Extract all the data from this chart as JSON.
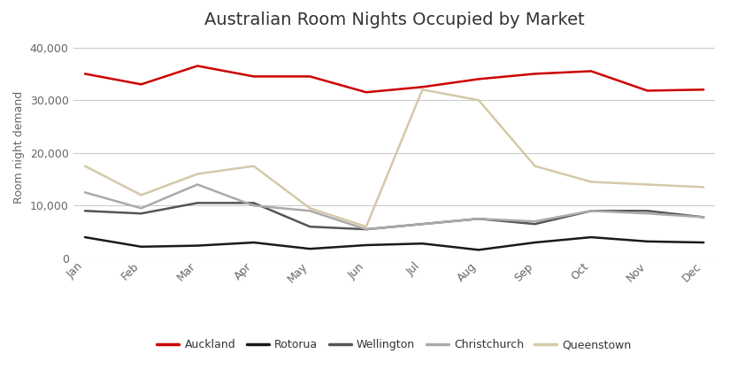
{
  "title": "Australian Room Nights Occupied by Market",
  "ylabel": "Room night demand",
  "months": [
    "Jan",
    "Feb",
    "Mar",
    "Apr",
    "May",
    "Jun",
    "Jul",
    "Aug",
    "Sep",
    "Oct",
    "Nov",
    "Dec"
  ],
  "series": {
    "Auckland": [
      35000,
      33000,
      36500,
      34500,
      34500,
      31500,
      32500,
      34000,
      35000,
      35500,
      31800,
      32000
    ],
    "Rotorua": [
      4000,
      2200,
      2400,
      3000,
      1800,
      2500,
      2800,
      1600,
      3000,
      4000,
      3200,
      3000
    ],
    "Wellington": [
      9000,
      8500,
      10500,
      10500,
      6000,
      5500,
      6500,
      7500,
      6500,
      9000,
      9000,
      7800
    ],
    "Christchurch": [
      12500,
      9500,
      14000,
      10000,
      9000,
      5500,
      6500,
      7500,
      7000,
      9000,
      8500,
      7800
    ],
    "Queenstown": [
      17500,
      12000,
      16000,
      17500,
      9500,
      6000,
      32000,
      30000,
      17500,
      14500,
      14000,
      13500
    ]
  },
  "colors": {
    "Auckland": "#cc0000",
    "Rotorua": "#1a1a1a",
    "Wellington": "#555555",
    "Christchurch": "#aaaaaa",
    "Queenstown": "#d4c9a8"
  },
  "ylim": [
    0,
    42000
  ],
  "yticks": [
    0,
    10000,
    20000,
    30000,
    40000
  ],
  "background_color": "#ffffff",
  "grid_color": "#cccccc",
  "title_fontsize": 14,
  "axis_label_fontsize": 9,
  "tick_fontsize": 9,
  "legend_fontsize": 9
}
